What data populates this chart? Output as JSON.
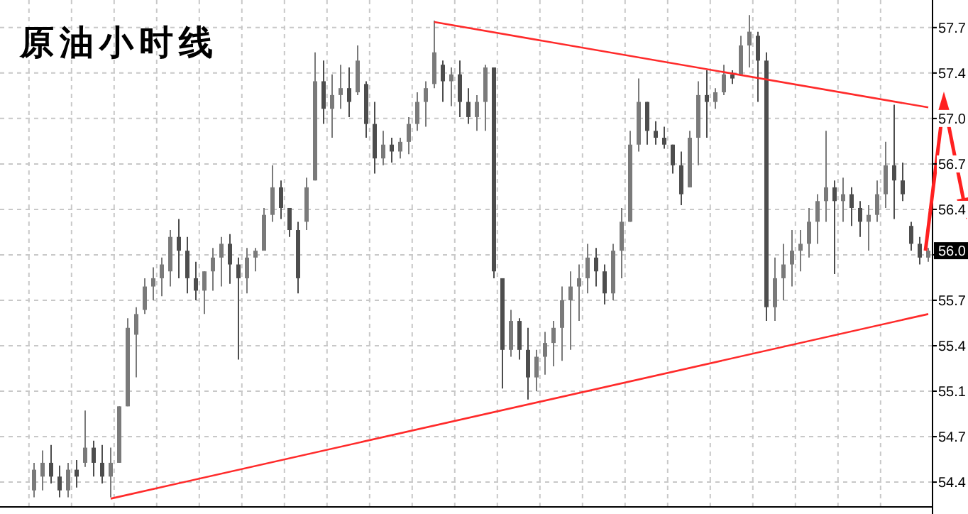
{
  "chart_data": {
    "type": "candlestick",
    "title": "原油小时线",
    "colors": [
      "#7a7a7a",
      "#7a7a7a",
      "#4d4d4d",
      "#4d4d4d",
      "#7a7a7a",
      "#4d4d4d",
      "#7a7a7a",
      "#4d4d4d",
      "#4d4d4d",
      "#7a7a7a",
      "#7a7a7a",
      "#7a7a7a",
      "#7a7a7a",
      "#7a7a7a",
      "#7a7a7a",
      "#7a7a7a",
      "#7a7a7a",
      "#4d4d4d",
      "#4d4d4d",
      "#4d4d4d",
      "#7a7a7a",
      "#7a7a7a",
      "#7a7a7a",
      "#4d4d4d",
      "#4d4d4d",
      "#7a7a7a",
      "#7a7a7a",
      "#7a7a7a",
      "#7a7a7a",
      "#4d4d4d",
      "#4d4d4d",
      "#4d4d4d",
      "#7a7a7a",
      "#7a7a7a",
      "#4d4d4d",
      "#7a7a7a",
      "#7a7a7a",
      "#4d4d4d",
      "#7a7a7a",
      "#4d4d4d",
      "#4d4d4d",
      "#7a7a7a",
      "#4d4d4d",
      "#7a7a7a",
      "#7a7a7a",
      "#7a7a7a",
      "#7a7a7a",
      "#7a7a7a",
      "#4d4d4d",
      "#7a7a7a",
      "#4d4d4d",
      "#4d4d4d",
      "#7a7a7a",
      "#7a7a7a",
      "#4d4d4d",
      "#4d4d4d",
      "#7a7a7a",
      "#4d4d4d",
      "#4d4d4d",
      "#7a7a7a",
      "#7a7a7a",
      "#7a7a7a",
      "#7a7a7a",
      "#7a7a7a",
      "#7a7a7a",
      "#7a7a7a",
      "#4d4d4d",
      "#4d4d4d",
      "#7a7a7a",
      "#7a7a7a",
      "#7a7a7a",
      "#7a7a7a",
      "#4d4d4d",
      "#4d4d4d",
      "#4d4d4d",
      "#4d4d4d",
      "#4d4d4d",
      "#7a7a7a",
      "#7a7a7a",
      "#4d4d4d",
      "#7a7a7a",
      "#7a7a7a",
      "#4d4d4d",
      "#7a7a7a",
      "#7a7a7a",
      "#4d4d4d",
      "#4d4d4d",
      "#7a7a7a",
      "#7a7a7a",
      "#7a7a7a",
      "#7a7a7a",
      "#7a7a7a",
      "#7a7a7a",
      "#7a7a7a",
      "#4d4d4d",
      "#7a7a7a",
      "#4d4d4d",
      "#4d4d4d",
      "#7a7a7a",
      "#7a7a7a",
      "#7a7a7a",
      "#4d4d4d",
      "#4d4d4d",
      "#4d4d4d",
      "#4d4d4d",
      "#7a7a7a"
    ],
    "categories": [
      null,
      null,
      null,
      null,
      null,
      null,
      null,
      null,
      null,
      null,
      null,
      null,
      null,
      null,
      null,
      null,
      null,
      null,
      null,
      null,
      null,
      null,
      null,
      null,
      null,
      null,
      null,
      null,
      null,
      null,
      null,
      null,
      null,
      null,
      null,
      null,
      null,
      null,
      null,
      null,
      null,
      null,
      null,
      null,
      null,
      null,
      null,
      null,
      null,
      null,
      null,
      null,
      null,
      null,
      null,
      null,
      null,
      null,
      null,
      null,
      null,
      null,
      null,
      null,
      null,
      null,
      null,
      null,
      null,
      null,
      null,
      null,
      null,
      null,
      null,
      null,
      null,
      null,
      null,
      null,
      null,
      null,
      null,
      null,
      null,
      null,
      null,
      null,
      null,
      null,
      null,
      null,
      null,
      null,
      null,
      null,
      null,
      null,
      null,
      null,
      null,
      null,
      null,
      null,
      null,
      null
    ],
    "ohlc": [
      [
        54.34,
        54.54,
        54.29,
        54.49
      ],
      [
        54.44,
        54.63,
        54.34,
        54.54
      ],
      [
        54.54,
        54.67,
        54.39,
        54.44
      ],
      [
        54.44,
        54.52,
        54.29,
        54.34
      ],
      [
        54.34,
        54.54,
        54.29,
        54.49
      ],
      [
        54.49,
        54.56,
        54.36,
        54.44
      ],
      [
        54.54,
        54.92,
        54.51,
        54.65
      ],
      [
        54.65,
        54.7,
        54.44,
        54.54
      ],
      [
        54.54,
        54.67,
        54.39,
        54.44
      ],
      [
        54.44,
        54.65,
        54.29,
        54.54
      ],
      [
        54.54,
        54.95,
        54.54,
        54.95
      ],
      [
        54.95,
        55.59,
        54.95,
        55.52
      ],
      [
        55.47,
        55.67,
        55.16,
        55.62
      ],
      [
        55.65,
        55.88,
        55.62,
        55.82
      ],
      [
        55.82,
        55.96,
        55.72,
        55.88
      ],
      [
        55.88,
        56.03,
        55.75,
        55.98
      ],
      [
        55.93,
        56.23,
        55.82,
        56.18
      ],
      [
        56.18,
        56.31,
        55.88,
        56.08
      ],
      [
        56.08,
        56.18,
        55.77,
        55.88
      ],
      [
        55.88,
        56.0,
        55.72,
        55.79
      ],
      [
        55.79,
        55.93,
        55.62,
        55.93
      ],
      [
        55.93,
        56.1,
        55.79,
        56.03
      ],
      [
        56.03,
        56.18,
        55.82,
        56.13
      ],
      [
        56.13,
        56.2,
        55.84,
        55.98
      ],
      [
        55.98,
        56.03,
        55.29,
        55.88
      ],
      [
        55.88,
        56.1,
        55.77,
        56.03
      ],
      [
        56.03,
        56.1,
        55.93,
        56.08
      ],
      [
        56.08,
        56.39,
        56.08,
        56.34
      ],
      [
        56.34,
        56.7,
        56.29,
        56.54
      ],
      [
        56.54,
        56.59,
        56.31,
        56.39
      ],
      [
        56.39,
        56.39,
        56.18,
        56.23
      ],
      [
        56.23,
        56.29,
        55.77,
        55.88
      ],
      [
        56.29,
        56.61,
        56.23,
        56.54
      ],
      [
        56.59,
        57.52,
        56.59,
        57.31
      ],
      [
        57.31,
        57.46,
        57.0,
        57.11
      ],
      [
        57.11,
        57.36,
        56.9,
        57.21
      ],
      [
        57.21,
        57.43,
        57.11,
        57.26
      ],
      [
        57.26,
        57.41,
        57.05,
        57.16
      ],
      [
        57.23,
        57.57,
        57.21,
        57.46
      ],
      [
        57.29,
        57.31,
        56.9,
        57.0
      ],
      [
        57.0,
        57.16,
        56.64,
        56.75
      ],
      [
        56.75,
        56.95,
        56.7,
        56.85
      ],
      [
        56.85,
        56.9,
        56.72,
        56.8
      ],
      [
        56.8,
        56.9,
        56.75,
        56.87
      ],
      [
        56.87,
        57.05,
        56.78,
        57.0
      ],
      [
        57.0,
        57.23,
        56.95,
        57.16
      ],
      [
        57.16,
        57.31,
        56.98,
        57.26
      ],
      [
        57.29,
        57.75,
        57.26,
        57.52
      ],
      [
        57.43,
        57.46,
        57.16,
        57.31
      ],
      [
        57.31,
        57.41,
        57.13,
        57.36
      ],
      [
        57.36,
        57.46,
        57.05,
        57.16
      ],
      [
        57.16,
        57.26,
        57.0,
        57.05
      ],
      [
        57.05,
        57.21,
        56.95,
        57.16
      ],
      [
        57.16,
        57.43,
        56.95,
        57.41
      ],
      [
        57.41,
        57.41,
        55.88,
        55.93
      ],
      [
        55.88,
        55.88,
        55.08,
        55.36
      ],
      [
        55.36,
        55.65,
        55.31,
        55.57
      ],
      [
        55.57,
        55.59,
        55.29,
        55.36
      ],
      [
        55.36,
        55.52,
        55.0,
        55.16
      ],
      [
        55.16,
        55.36,
        55.06,
        55.31
      ],
      [
        55.31,
        55.49,
        55.18,
        55.41
      ],
      [
        55.41,
        55.57,
        55.24,
        55.52
      ],
      [
        55.52,
        55.82,
        55.28,
        55.72
      ],
      [
        55.72,
        55.93,
        55.36,
        55.82
      ],
      [
        55.82,
        55.98,
        55.57,
        55.88
      ],
      [
        55.88,
        56.13,
        55.77,
        56.03
      ],
      [
        56.03,
        56.1,
        55.82,
        55.93
      ],
      [
        55.93,
        55.98,
        55.69,
        55.77
      ],
      [
        55.77,
        56.13,
        55.72,
        56.08
      ],
      [
        56.08,
        56.39,
        55.88,
        56.29
      ],
      [
        56.29,
        56.95,
        56.29,
        56.85
      ],
      [
        56.85,
        57.33,
        56.8,
        57.16
      ],
      [
        57.16,
        57.16,
        56.85,
        56.95
      ],
      [
        56.95,
        57.02,
        56.85,
        56.9
      ],
      [
        56.9,
        56.98,
        56.82,
        56.85
      ],
      [
        56.85,
        56.85,
        56.64,
        56.7
      ],
      [
        56.7,
        56.8,
        56.41,
        56.49
      ],
      [
        56.54,
        56.95,
        56.54,
        56.9
      ],
      [
        56.9,
        57.31,
        56.7,
        57.21
      ],
      [
        57.21,
        57.39,
        56.9,
        57.16
      ],
      [
        57.16,
        57.26,
        57.11,
        57.23
      ],
      [
        57.23,
        57.43,
        57.21,
        57.36
      ],
      [
        57.36,
        57.39,
        57.29,
        57.33
      ],
      [
        57.36,
        57.64,
        57.36,
        57.57
      ],
      [
        57.57,
        57.79,
        57.41,
        57.67
      ],
      [
        57.64,
        57.67,
        57.16,
        57.46
      ],
      [
        57.46,
        57.52,
        55.57,
        55.67
      ],
      [
        55.67,
        56.03,
        55.57,
        55.88
      ],
      [
        55.88,
        56.13,
        55.72,
        55.98
      ],
      [
        55.98,
        56.23,
        55.82,
        56.08
      ],
      [
        56.08,
        56.23,
        55.93,
        56.13
      ],
      [
        56.13,
        56.39,
        56.03,
        56.29
      ],
      [
        56.29,
        56.49,
        56.13,
        56.44
      ],
      [
        56.44,
        56.95,
        56.29,
        56.54
      ],
      [
        56.54,
        56.59,
        55.91,
        56.44
      ],
      [
        56.44,
        56.61,
        56.29,
        56.49
      ],
      [
        56.49,
        56.54,
        56.26,
        56.39
      ],
      [
        56.39,
        56.44,
        56.18,
        56.29
      ],
      [
        56.29,
        56.41,
        56.08,
        56.34
      ],
      [
        56.34,
        56.59,
        56.29,
        56.49
      ],
      [
        56.49,
        56.87,
        56.39,
        56.7
      ],
      [
        56.7,
        57.14,
        56.31,
        56.59
      ],
      [
        56.59,
        56.72,
        56.44,
        56.49
      ],
      [
        56.26,
        56.29,
        56.08,
        56.13
      ],
      [
        56.13,
        56.18,
        55.98,
        56.03
      ],
      [
        56.03,
        56.1,
        56.0,
        56.08
      ]
    ],
    "series": [
      {
        "type": "line",
        "color": "#ff2a2a",
        "values": [
          null,
          null,
          null,
          null,
          null,
          null,
          null,
          null,
          null,
          null,
          null,
          null,
          null,
          null,
          null,
          null,
          null,
          null,
          null,
          null,
          null,
          null,
          null,
          null,
          null,
          null,
          null,
          null,
          null,
          null,
          null,
          null,
          null,
          null,
          null,
          null,
          null,
          null,
          null,
          null,
          null,
          null,
          null,
          null,
          null,
          null,
          null,
          57.74,
          null,
          null,
          null,
          null,
          null,
          null,
          null,
          null,
          null,
          null,
          null,
          null,
          null,
          null,
          null,
          null,
          null,
          null,
          null,
          null,
          null,
          null,
          null,
          null,
          null,
          null,
          null,
          null,
          null,
          null,
          null,
          null,
          null,
          null,
          null,
          null,
          null,
          null,
          null,
          null,
          null,
          null,
          null,
          null,
          null,
          null,
          null,
          null,
          null,
          null,
          null,
          null,
          null,
          null,
          null,
          null,
          null,
          57.12
        ]
      },
      {
        "type": "line",
        "color": "#ff2a2a",
        "values": [
          null,
          null,
          null,
          null,
          null,
          null,
          null,
          null,
          null,
          54.28,
          null,
          null,
          null,
          null,
          null,
          null,
          null,
          null,
          null,
          null,
          null,
          null,
          null,
          null,
          null,
          null,
          null,
          null,
          null,
          null,
          null,
          null,
          null,
          null,
          null,
          null,
          null,
          null,
          null,
          null,
          null,
          null,
          null,
          null,
          null,
          null,
          null,
          null,
          null,
          null,
          null,
          null,
          null,
          null,
          null,
          null,
          null,
          null,
          null,
          null,
          null,
          null,
          null,
          null,
          null,
          null,
          null,
          null,
          null,
          null,
          null,
          null,
          null,
          null,
          null,
          null,
          null,
          null,
          null,
          null,
          null,
          null,
          null,
          null,
          null,
          null,
          null,
          null,
          null,
          null,
          null,
          null,
          null,
          null,
          null,
          null,
          null,
          null,
          null,
          null,
          null,
          null,
          null,
          null,
          null,
          55.62
        ]
      }
    ],
    "ylim": [
      54.22,
      57.9
    ],
    "yticks": [
      {
        "value": 57.7,
        "label": "57.7"
      },
      {
        "value": 57.37,
        "label": "57.4"
      },
      {
        "value": 57.04,
        "label": "57.0"
      },
      {
        "value": 56.71,
        "label": "56.7"
      },
      {
        "value": 56.38,
        "label": "56.4"
      },
      {
        "value": 56.05,
        "label": null
      },
      {
        "value": 55.72,
        "label": "55.7"
      },
      {
        "value": 55.39,
        "label": "55.4"
      },
      {
        "value": 55.06,
        "label": "55.1"
      },
      {
        "value": 54.73,
        "label": "54.7"
      },
      {
        "value": 54.4,
        "label": "54.4"
      }
    ],
    "tick_labels": "y",
    "grid": true,
    "annotations": [
      {
        "text": "56.0",
        "y": 56.08
      }
    ]
  }
}
